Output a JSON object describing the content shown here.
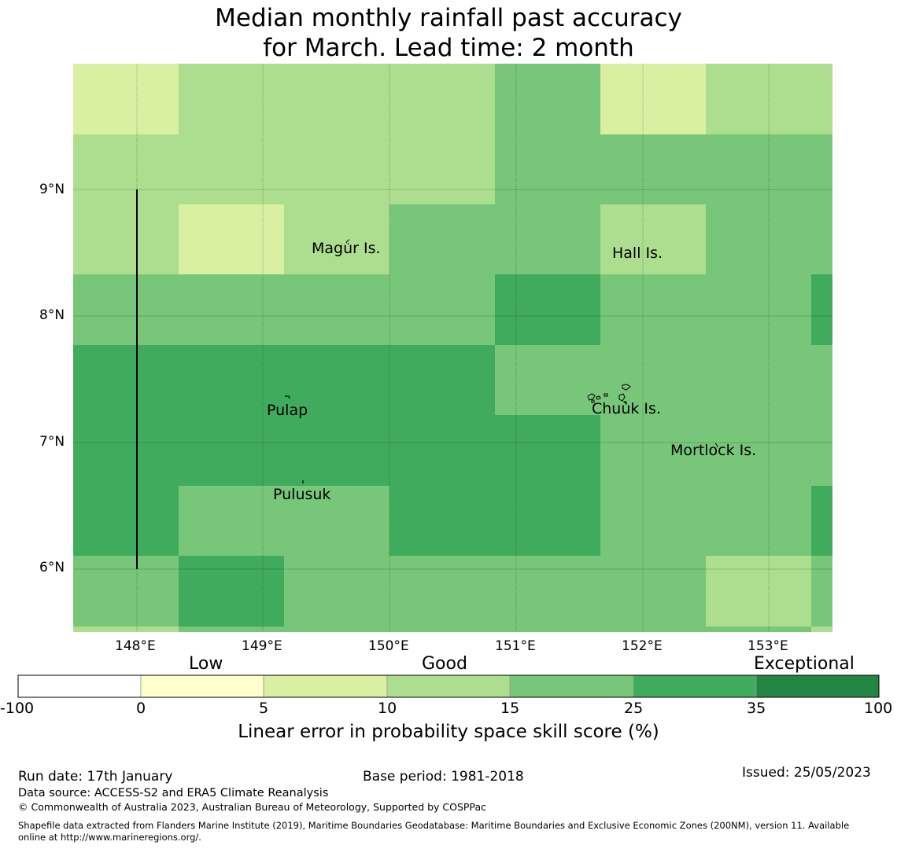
{
  "title": {
    "line1": "Median monthly rainfall past accuracy",
    "line2": "for March. Lead time: 2 month"
  },
  "map": {
    "lon_range": [
      147.5,
      153.5
    ],
    "lat_range": [
      5.5,
      10.0
    ],
    "lon_ticks": [
      "148°E",
      "149°E",
      "150°E",
      "151°E",
      "152°E",
      "153°E"
    ],
    "lat_ticks": [
      "9°N",
      "8°N",
      "7°N",
      "6°N"
    ],
    "places": [
      {
        "name": "Magur Is."
      },
      {
        "name": "Hall Is."
      },
      {
        "name": "Pulap"
      },
      {
        "name": "Chuuk Is."
      },
      {
        "name": "Mortlock Is."
      },
      {
        "name": "Pulusuk"
      }
    ]
  },
  "colorbar": {
    "categories": [
      "Low",
      "Good",
      "Exceptional"
    ],
    "tick_labels": [
      "-100",
      "0",
      "5",
      "10",
      "15",
      "25",
      "35",
      "100"
    ],
    "colors": [
      "#ffffff",
      "#ffffcc",
      "#d9f0a3",
      "#addd8e",
      "#78c679",
      "#41ab5d",
      "#238443"
    ],
    "title": "Linear error in probability space skill score (%)"
  },
  "footer": {
    "run_date": "Run date: 17th January",
    "base_period": "Base period: 1981-2018",
    "issued": "Issued: 25/05/2023",
    "data_source": "Data source: ACCESS-S2 and ERA5 Climate Reanalysis",
    "copyright": "© Commonwealth of Australia 2023, Australian Bureau of Meteorology, Supported by COSPPac",
    "shapefile_1": "Shapefile data extracted from Flanders Marine Institute (2019), Maritime Boundaries Geodatabase: Maritime Boundaries and Exclusive Economic Zones (200NM), version 11. Available",
    "shapefile_2": "online at http://www.marineregions.org/."
  }
}
